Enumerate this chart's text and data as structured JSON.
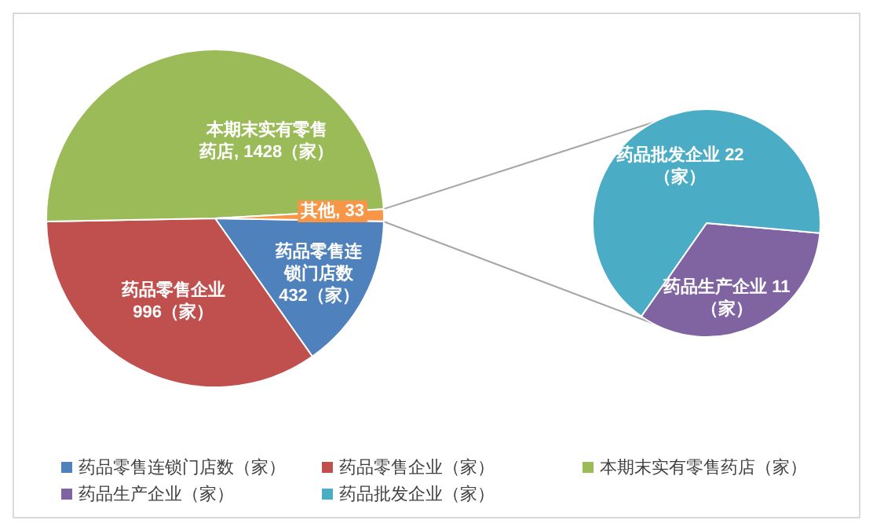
{
  "chart_data": [
    {
      "type": "pie",
      "categories": [
        "药品零售连锁门店数（家）",
        "药品零售企业（家）",
        "本期末实有零售药店（家）",
        null
      ],
      "values": [
        432,
        996,
        1428,
        33
      ],
      "colors": [
        "#4f81bd",
        "#c0504d",
        "#9bbb59",
        "#f79646"
      ],
      "value_labels": [
        "药品零售连锁门店数432（家）",
        "药品零售企业996（家）",
        "本期末实有零售药店, 1428（家）",
        "其他, 33"
      ],
      "legend": "bottom"
    },
    {
      "type": "pie",
      "categories": [
        "药品生产企业（家）",
        "药品批发企业（家）"
      ],
      "values": [
        11,
        22
      ],
      "colors": [
        "#8064a2",
        "#4bacc6"
      ],
      "value_labels": [
        "药品生产企业 11（家）",
        "药品批发企业 22（家）"
      ],
      "legend": "bottom"
    }
  ]
}
